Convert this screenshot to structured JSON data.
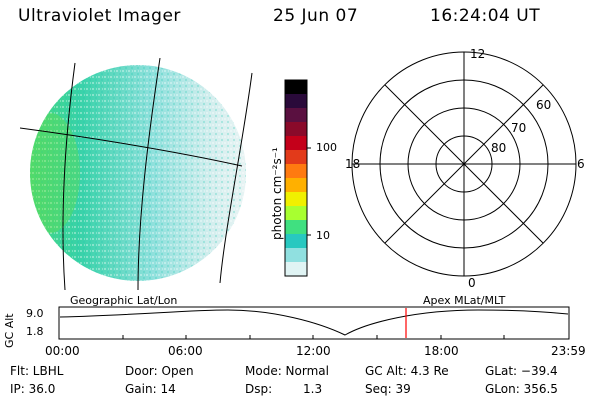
{
  "header": {
    "title": "Ultraviolet Imager",
    "date": "25 Jun 07",
    "time": "16:24:04 UT"
  },
  "colorbar": {
    "unit_label": "photon cm⁻²s⁻¹",
    "ticks": [
      "100",
      "10"
    ],
    "colors": [
      "#000000",
      "#2a0a3a",
      "#5a1040",
      "#8a0a2a",
      "#c4001a",
      "#e23a1a",
      "#ff7a10",
      "#ffb000",
      "#f0f000",
      "#a8ff30",
      "#40e080",
      "#28c8c0",
      "#90e0e0",
      "#e0f4f4"
    ]
  },
  "polar_plot": {
    "mlt_labels": {
      "top": "12",
      "left": "18",
      "right": "6",
      "bottom": "0"
    },
    "lat_labels": [
      "60",
      "70",
      "80"
    ]
  },
  "projection_labels": {
    "left": "Geographic Lat/Lon",
    "right": "Apex MLat/MLT"
  },
  "altitude_plot": {
    "axis_label": "GC Alt",
    "y_ticks": [
      "9.0",
      "1.8"
    ],
    "x_ticks": [
      "00:00",
      "06:00",
      "12:00",
      "18:00",
      "23:59"
    ],
    "current_time_marker": "16:24",
    "marker_color": "#ff0000"
  },
  "status": {
    "filter": "Flt: LBHL",
    "door": "Door: Open",
    "mode": "Mode: Normal",
    "gc_alt": "GC Alt: 4.3 Re",
    "glat": "GLat: −39.4",
    "ip": "IP: 36.0",
    "gain": "Gain: 14",
    "dsp_label": "Dsp:",
    "dsp_value": "1.3",
    "seq": "Seq: 39",
    "glon": "GLon: 356.5"
  }
}
